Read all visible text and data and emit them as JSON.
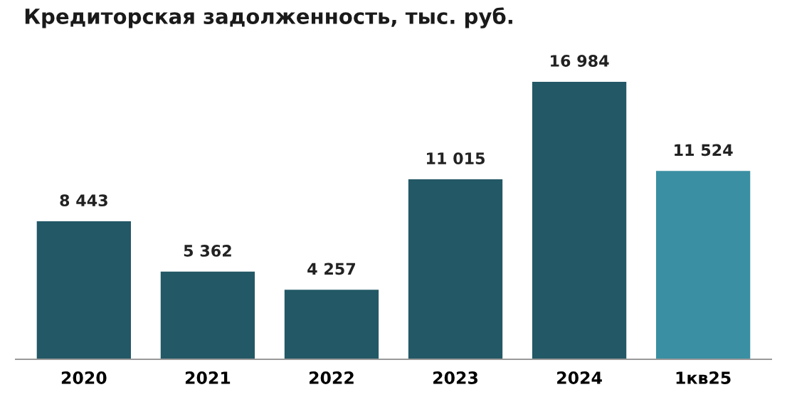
{
  "chart_data": {
    "type": "bar",
    "title": "Кредиторская задолженность, тыс. руб.",
    "categories": [
      "2020",
      "2021",
      "2022",
      "2023",
      "2024",
      "1кв25"
    ],
    "values": [
      8443,
      5362,
      4257,
      11015,
      16984,
      11524
    ],
    "value_labels": [
      "8 443",
      "5 362",
      "4 257",
      "11 015",
      "16 984",
      "11 524"
    ],
    "colors": [
      "#235866",
      "#235866",
      "#235866",
      "#235866",
      "#235866",
      "#3a8fa3"
    ],
    "grid": false,
    "legend": false,
    "tick_labels": "x"
  }
}
